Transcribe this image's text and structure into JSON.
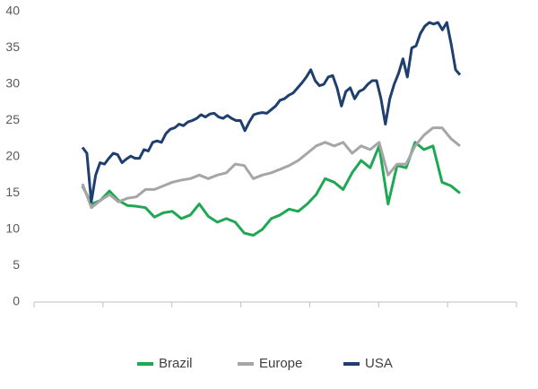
{
  "chart_data": {
    "type": "line",
    "ylim": [
      0,
      40
    ],
    "yticks": [
      0,
      5,
      10,
      15,
      20,
      25,
      30,
      35,
      40
    ],
    "grid": false,
    "legend": "bottom",
    "series": [
      {
        "name": "Brazil",
        "color": "#1fa854",
        "values": [
          16.0,
          13.5,
          14.0,
          15.3,
          14.0,
          13.3,
          13.2,
          13.0,
          11.7,
          12.3,
          12.5,
          11.5,
          12.0,
          13.5,
          11.8,
          11.0,
          11.5,
          11.0,
          9.5,
          9.2,
          10.0,
          11.5,
          12.0,
          12.8,
          12.5,
          13.5,
          14.8,
          17.0,
          16.5,
          15.5,
          17.8,
          19.5,
          18.5,
          21.5,
          13.5,
          18.8,
          18.5,
          22.0,
          21.0,
          21.5,
          16.5,
          16.0,
          15.0
        ]
      },
      {
        "name": "Europe",
        "color": "#a6a6a6",
        "values": [
          16.3,
          13.0,
          14.0,
          14.8,
          13.8,
          14.3,
          14.5,
          15.5,
          15.5,
          16.0,
          16.5,
          16.8,
          17.0,
          17.5,
          17.0,
          17.5,
          17.8,
          19.0,
          18.8,
          17.0,
          17.5,
          17.8,
          18.3,
          18.8,
          19.5,
          20.5,
          21.5,
          22.0,
          21.5,
          22.0,
          20.5,
          21.5,
          21.0,
          22.0,
          17.5,
          19.0,
          19.0,
          21.5,
          23.0,
          24.0,
          24.0,
          22.5,
          21.5
        ]
      },
      {
        "name": "USA",
        "color": "#1f3f6e",
        "values": [
          21.3,
          20.5,
          13.8,
          17.5,
          19.2,
          19.0,
          19.8,
          20.5,
          20.3,
          19.2,
          19.7,
          20.1,
          19.8,
          19.8,
          21.0,
          20.8,
          22.0,
          22.2,
          22.0,
          23.2,
          23.8,
          24.0,
          24.5,
          24.3,
          24.8,
          25.0,
          25.3,
          25.8,
          25.5,
          25.9,
          26.0,
          25.5,
          25.3,
          25.7,
          25.3,
          25.0,
          25.0,
          23.6,
          24.8,
          25.8,
          26.0,
          26.1,
          26.0,
          26.5,
          27.0,
          27.8,
          28.0,
          28.5,
          28.8,
          29.5,
          30.2,
          31.0,
          32.0,
          30.5,
          29.8,
          30.0,
          31.0,
          31.2,
          29.5,
          27.0,
          29.0,
          29.5,
          28.0,
          29.0,
          29.3,
          30.0,
          30.5,
          30.5,
          28.0,
          24.5,
          28.0,
          30.0,
          31.5,
          33.5,
          31.0,
          35.0,
          35.3,
          37.0,
          38.0,
          38.5,
          38.3,
          38.5,
          37.5,
          38.5,
          35.5,
          32.0,
          31.3
        ]
      }
    ]
  }
}
